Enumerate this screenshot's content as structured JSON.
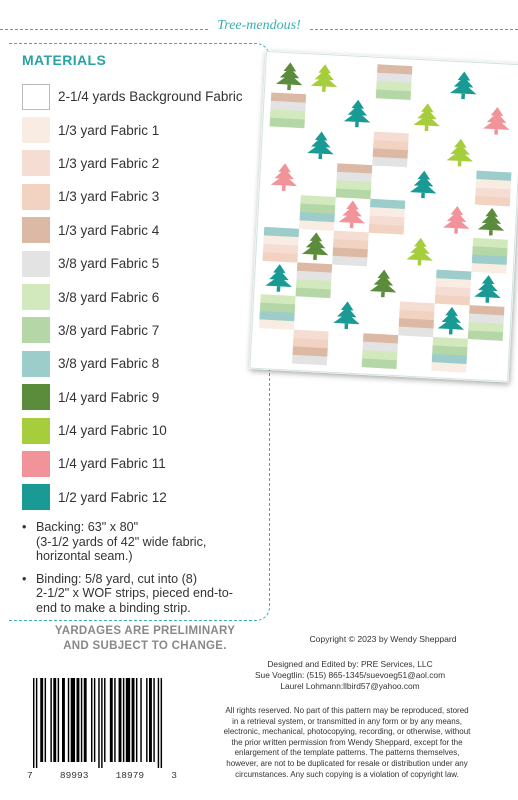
{
  "header": {
    "title": "Tree-mendous!"
  },
  "materials": {
    "title": "MATERIALS",
    "items": [
      {
        "label": "2-1/4 yards Background Fabric",
        "color": "#ffffff",
        "bordered": true
      },
      {
        "label": "1/3 yard Fabric 1",
        "color": "#f9ece2"
      },
      {
        "label": "1/3 yard Fabric 2",
        "color": "#f5ddd4"
      },
      {
        "label": "1/3 yard Fabric 3",
        "color": "#f2d2c1"
      },
      {
        "label": "1/3 yard Fabric 4",
        "color": "#dcb9a4"
      },
      {
        "label": "3/8 yard Fabric 5",
        "color": "#e3e3e3"
      },
      {
        "label": "3/8 yard Fabric 6",
        "color": "#d2e9bd"
      },
      {
        "label": "3/8 yard Fabric 7",
        "color": "#b5d7a7"
      },
      {
        "label": "3/8 yard Fabric 8",
        "color": "#9ccdcb"
      },
      {
        "label": "1/4 yard Fabric 9",
        "color": "#5a8c3b"
      },
      {
        "label": "1/4 yard Fabric 10",
        "color": "#a6cd3c"
      },
      {
        "label": "1/4 yard Fabric 11",
        "color": "#f2939a"
      },
      {
        "label": "1/2 yard Fabric 12",
        "color": "#1a9a95"
      }
    ],
    "notes": [
      {
        "lines": [
          "Backing: 63\" x 80\"",
          "(3-1/2 yards of 42\" wide fabric,",
          "horizontal seam.)"
        ]
      },
      {
        "lines": [
          "Binding: 5/8 yard, cut into (8)",
          "2-1/2\" x WOF strips, pieced end-to-",
          "end to make a binding strip."
        ]
      }
    ],
    "warning": {
      "line1": "YARDAGES ARE PRELIMINARY",
      "line2": "AND SUBJECT TO CHANGE."
    }
  },
  "copyright": "Copyright © 2023 by Wendy Sheppard",
  "credits": {
    "line1": "Designed and Edited by: PRE Services, LLC",
    "line2": "Sue Voegtlin: (515) 865-1345/suevoeg51@aol.com",
    "line3": "Laurel Lohmann:llbird57@yahoo.com"
  },
  "legal": {
    "l1": "All rights reserved. No part of this pattern may be reproduced, stored",
    "l2": "in a retrieval system, or transmitted in any form or by any means,",
    "l3": "electronic, mechanical, photocopying, recording, or otherwise, without",
    "l4": "the prior written permission from Wendy Sheppard, except for the",
    "l5": "enlargement of the template patterns. The patterns themselves,",
    "l6": "however, are not to be duplicated for resale or distribution under any",
    "l7": "circumstances. Any such copying is a violation of copyright law."
  },
  "barcode": {
    "d1": "7",
    "d2": "89993",
    "d3": "18979",
    "d4": "3"
  },
  "quilt": {
    "stripe_colors": [
      "#f9ece2",
      "#f5ddd4",
      "#f2d2c1",
      "#dcb9a4",
      "#e3e3e3",
      "#d2e9bd",
      "#b5d7a7",
      "#9ccdcb"
    ],
    "tree_colors": [
      "#5a8c3b",
      "#a6cd3c",
      "#f2939a",
      "#1a9a95"
    ]
  }
}
